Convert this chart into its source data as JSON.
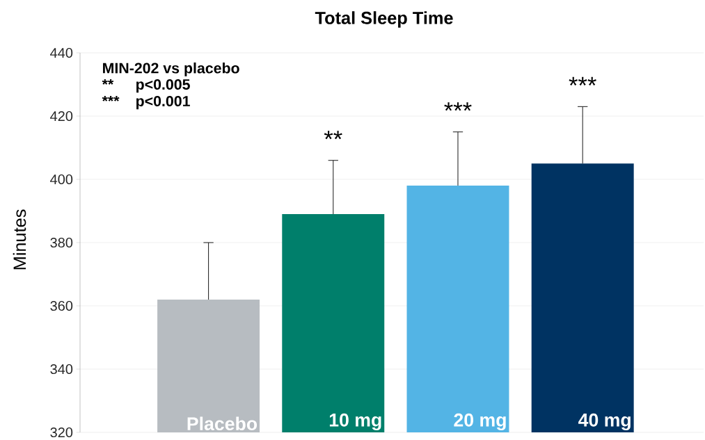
{
  "chart_data": {
    "type": "bar",
    "title": "Total Sleep Time",
    "ylabel": "Minutes",
    "categories": [
      "Placebo",
      "10 mg",
      "20 mg",
      "40 mg"
    ],
    "values": [
      362,
      389,
      398,
      405
    ],
    "colors": [
      "#b7bcc1",
      "#007f6b",
      "#53b4e5",
      "#003362"
    ],
    "errors": [
      [
        362,
        380
      ],
      [
        389,
        406
      ],
      [
        398,
        415
      ],
      [
        405,
        423
      ]
    ],
    "ylim": [
      320,
      440
    ],
    "yticks": [
      320,
      340,
      360,
      380,
      400,
      420,
      440
    ],
    "grid": "y",
    "annotations": [
      "MIN-202 vs placebo",
      "**",
      "p<0.005",
      "***",
      "p<0.001",
      "**",
      "***",
      "***"
    ]
  }
}
